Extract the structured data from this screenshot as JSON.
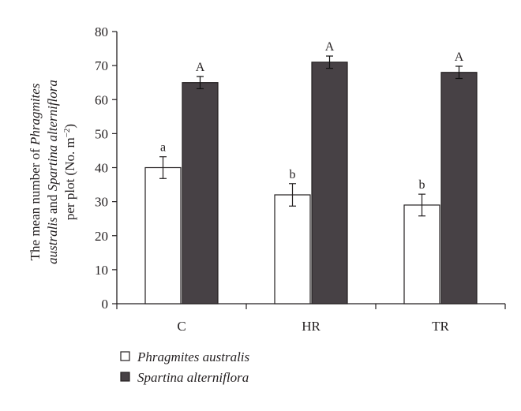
{
  "chart_data": {
    "type": "bar",
    "categories": [
      "C",
      "HR",
      "TR"
    ],
    "series": [
      {
        "name": "Phragmites australis",
        "values": [
          40,
          32,
          29
        ],
        "errors": [
          3.2,
          3.3,
          3.2
        ],
        "letters": [
          "a",
          "b",
          "b"
        ],
        "fill": "#ffffff"
      },
      {
        "name": "Spartina alterniflora",
        "values": [
          65,
          71,
          68
        ],
        "errors": [
          1.8,
          1.8,
          1.8
        ],
        "letters": [
          "A",
          "A",
          "A"
        ],
        "fill": "#474145"
      }
    ],
    "ylabel": {
      "line1": "The mean number of ",
      "line1_italic": "Phragmites",
      "line2_italic_a": "australis",
      "line2_mid": " and ",
      "line2_italic_b": "Spartina alterniflora",
      "line3": "per plot (No. m",
      "line3_sup": "−2",
      "line3_end": ")"
    },
    "ylim": [
      0,
      80
    ],
    "yticks": [
      0,
      10,
      20,
      30,
      40,
      50,
      60,
      70,
      80
    ],
    "grid": false,
    "legend_position": "bottom-left",
    "colors": {
      "axis": "#231f20",
      "bar_dark": "#474145",
      "bar_light": "#ffffff"
    }
  }
}
